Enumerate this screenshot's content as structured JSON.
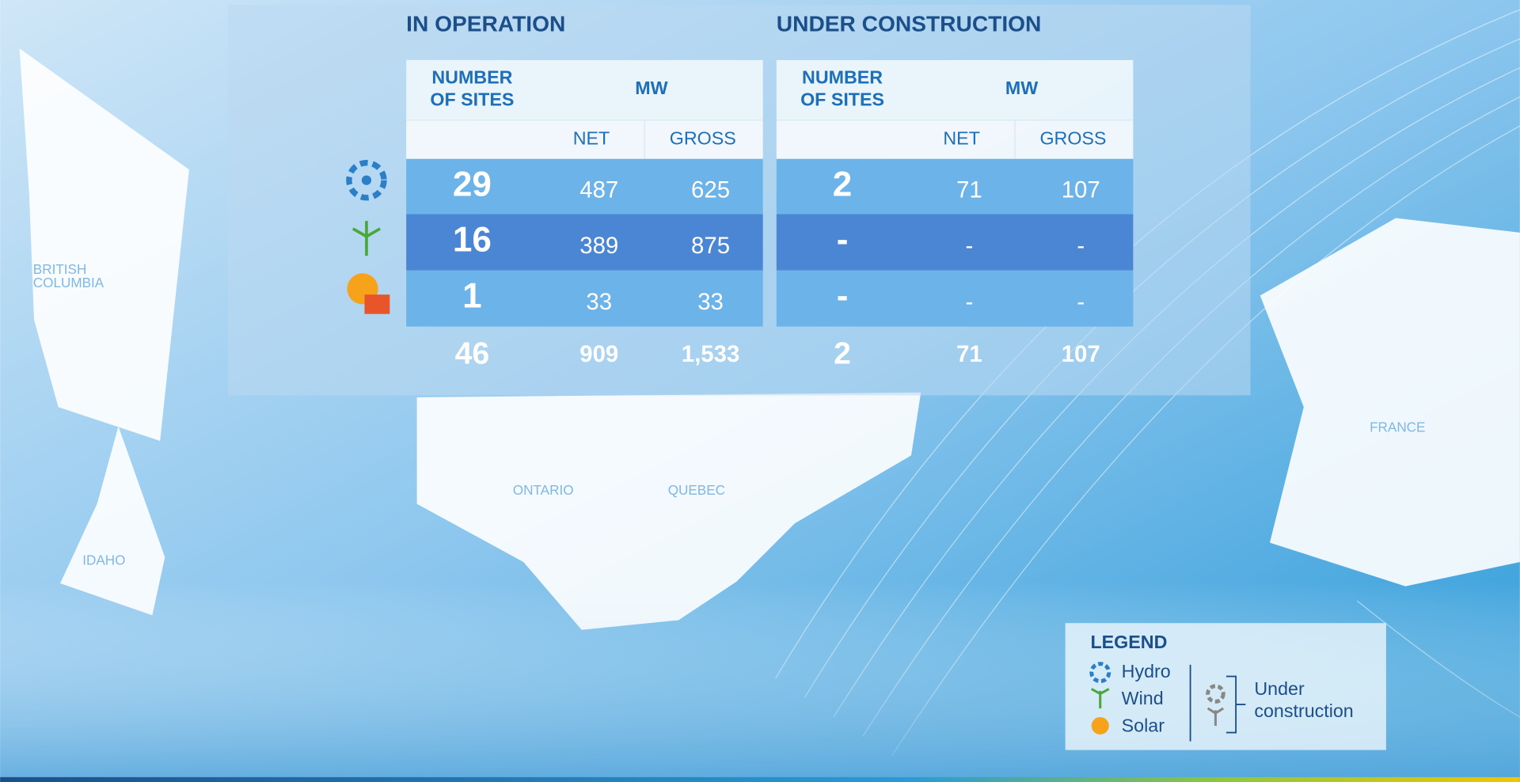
{
  "sections": [
    {
      "title": "IN OPERATION",
      "header": {
        "sites": [
          "NUMBER",
          "OF SITES"
        ],
        "mw": "MW",
        "net": "NET",
        "gross": "GROSS"
      },
      "rows": [
        [
          "29",
          "487",
          "625"
        ],
        [
          "16",
          "389",
          "875"
        ],
        [
          "1",
          "33",
          "33"
        ]
      ],
      "total": [
        "46",
        "909",
        "1,533"
      ]
    },
    {
      "title": "UNDER CONSTRUCTION",
      "header": {
        "sites": [
          "NUMBER",
          "OF SITES"
        ],
        "mw": "MW",
        "net": "NET",
        "gross": "GROSS"
      },
      "rows": [
        [
          "2",
          "71",
          "107"
        ],
        [
          "-",
          "-",
          "-"
        ],
        [
          "-",
          "-",
          "-"
        ]
      ],
      "total": [
        "2",
        "71",
        "107"
      ]
    }
  ],
  "map_labels": {
    "british_columbia": [
      "BRITISH",
      "COLUMBIA"
    ],
    "idaho": "IDAHO",
    "ontario": "ONTARIO",
    "quebec": "QUEBEC",
    "france": "FRANCE"
  },
  "legend": {
    "title": "LEGEND",
    "items": [
      "Hydro",
      "Wind",
      "Solar"
    ],
    "under": [
      "Under",
      "construction"
    ]
  }
}
